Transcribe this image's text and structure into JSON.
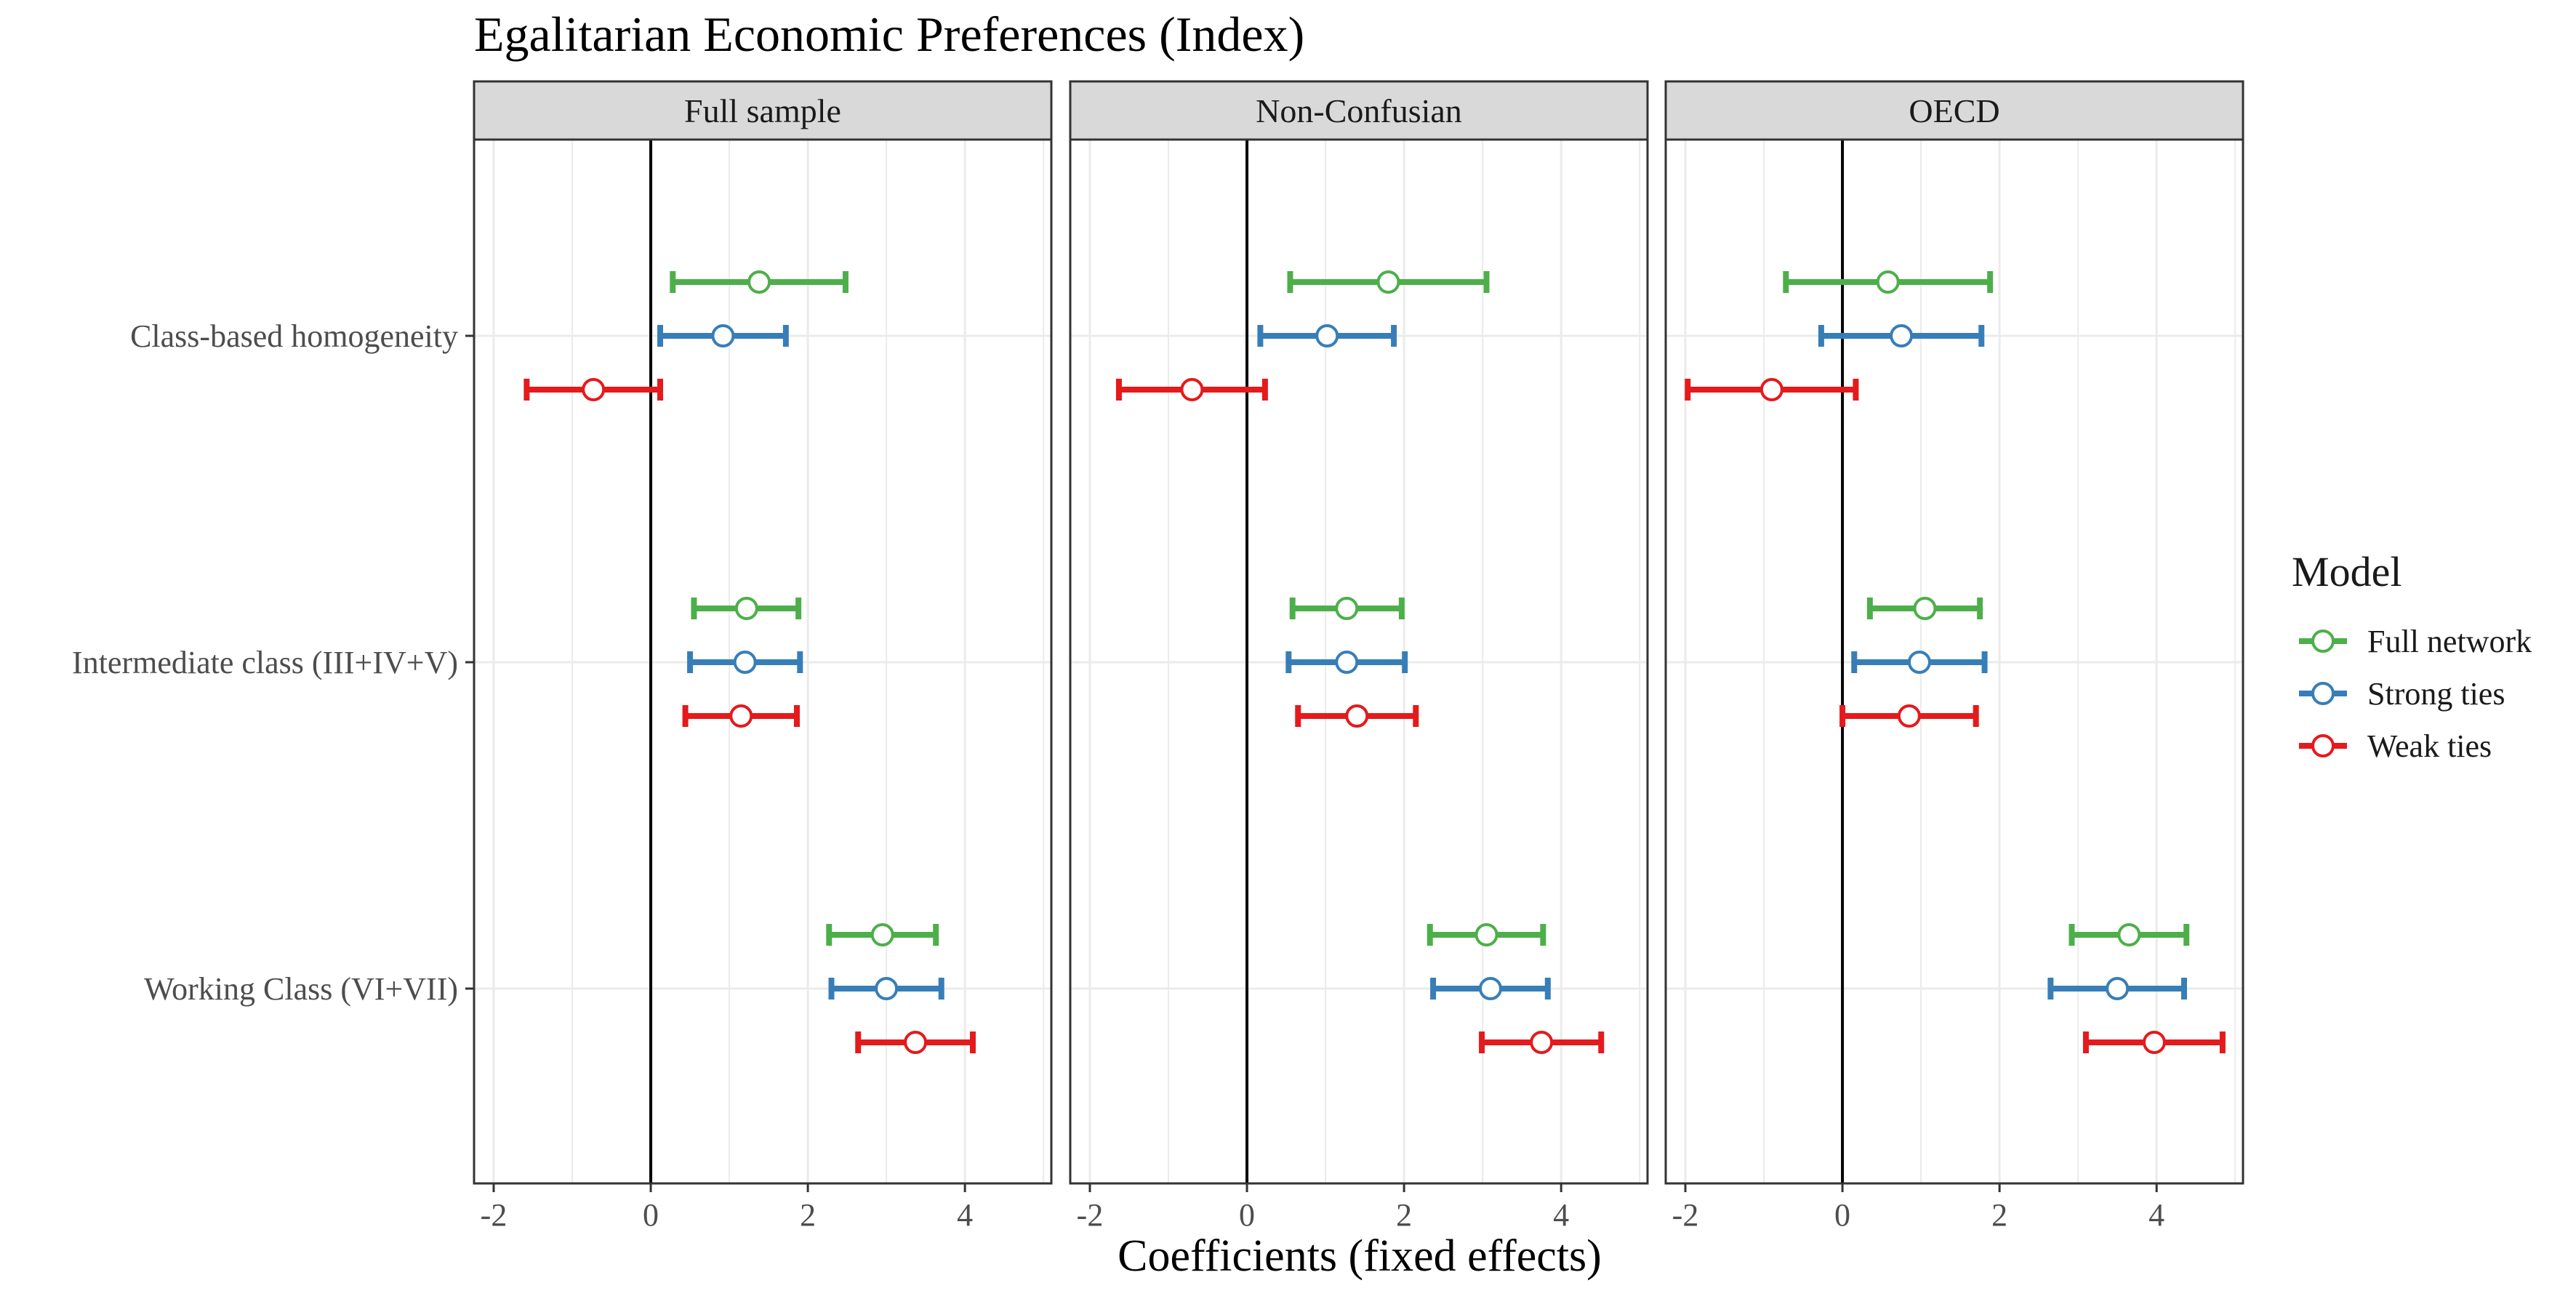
{
  "chart_data": {
    "type": "coefficient-plot",
    "title": "Egalitarian Economic Preferences (Index)",
    "xlabel": "Coefficients (fixed effects)",
    "ylabel": "",
    "xlim": [
      -2.25,
      5.1
    ],
    "x_ticks": [
      -2,
      0,
      2,
      4
    ],
    "x_tick_labels": [
      "-2",
      "0",
      "2",
      "4"
    ],
    "reference_line": 0,
    "grid": true,
    "facets": [
      "Full sample",
      "Non-Confusian",
      "OECD"
    ],
    "categories": [
      "Class-based homogeneity",
      "Intermediate class (III+IV+V)",
      "Working Class (VI+VII)"
    ],
    "legend": {
      "title": "Model",
      "position": "right",
      "entries": [
        "Full network",
        "Strong ties",
        "Weak ties"
      ]
    },
    "series": [
      {
        "name": "Full network",
        "color": "#4daf4a",
        "panels": [
          [
            {
              "est": 1.38,
              "lo": 0.28,
              "hi": 2.48
            },
            {
              "est": 1.22,
              "lo": 0.55,
              "hi": 1.88
            },
            {
              "est": 2.95,
              "lo": 2.27,
              "hi": 3.63
            }
          ],
          [
            {
              "est": 1.8,
              "lo": 0.55,
              "hi": 3.05
            },
            {
              "est": 1.27,
              "lo": 0.58,
              "hi": 1.97
            },
            {
              "est": 3.05,
              "lo": 2.33,
              "hi": 3.77
            }
          ],
          [
            {
              "est": 0.58,
              "lo": -0.72,
              "hi": 1.88
            },
            {
              "est": 1.05,
              "lo": 0.35,
              "hi": 1.75
            },
            {
              "est": 3.65,
              "lo": 2.92,
              "hi": 4.38
            }
          ]
        ]
      },
      {
        "name": "Strong ties",
        "color": "#377eb8",
        "panels": [
          [
            {
              "est": 0.92,
              "lo": 0.12,
              "hi": 1.72
            },
            {
              "est": 1.2,
              "lo": 0.5,
              "hi": 1.9
            },
            {
              "est": 3.0,
              "lo": 2.3,
              "hi": 3.7
            }
          ],
          [
            {
              "est": 1.02,
              "lo": 0.17,
              "hi": 1.87
            },
            {
              "est": 1.27,
              "lo": 0.53,
              "hi": 2.01
            },
            {
              "est": 3.1,
              "lo": 2.37,
              "hi": 3.83
            }
          ],
          [
            {
              "est": 0.75,
              "lo": -0.27,
              "hi": 1.77
            },
            {
              "est": 0.98,
              "lo": 0.15,
              "hi": 1.81
            },
            {
              "est": 3.5,
              "lo": 2.65,
              "hi": 4.35
            }
          ]
        ]
      },
      {
        "name": "Weak ties",
        "color": "#e41a1c",
        "panels": [
          [
            {
              "est": -0.73,
              "lo": -1.58,
              "hi": 0.12
            },
            {
              "est": 1.15,
              "lo": 0.44,
              "hi": 1.86
            },
            {
              "est": 3.37,
              "lo": 2.64,
              "hi": 4.1
            }
          ],
          [
            {
              "est": -0.7,
              "lo": -1.63,
              "hi": 0.23
            },
            {
              "est": 1.4,
              "lo": 0.65,
              "hi": 2.15
            },
            {
              "est": 3.75,
              "lo": 2.99,
              "hi": 4.51
            }
          ],
          [
            {
              "est": -0.9,
              "lo": -1.97,
              "hi": 0.17
            },
            {
              "est": 0.85,
              "lo": 0.0,
              "hi": 1.7
            },
            {
              "est": 3.97,
              "lo": 3.1,
              "hi": 4.84
            }
          ]
        ]
      }
    ]
  },
  "style": {
    "strip_fill": "#d9d9d9",
    "panel_border": "#333333",
    "gridline": "#ebebeb",
    "zero_line": "#000000",
    "text": "#1a1a1a",
    "tick_text": "#4d4d4d"
  }
}
